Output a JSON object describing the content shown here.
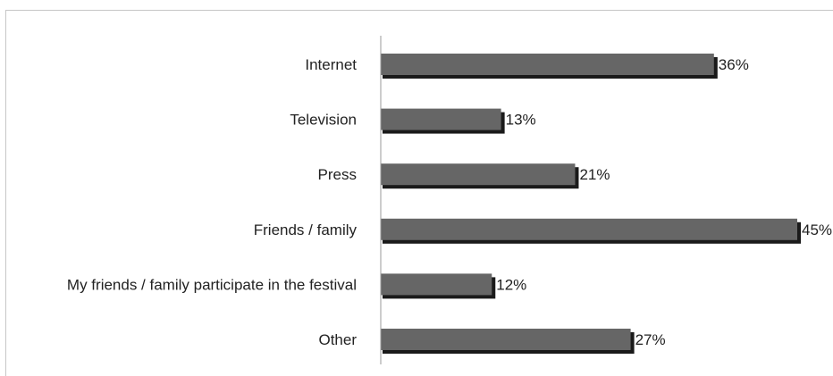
{
  "chart_data": {
    "type": "bar",
    "orientation": "horizontal",
    "categories": [
      "Internet",
      "Television",
      "Press",
      "Friends / family",
      "My friends / family participate in the festival",
      "Other"
    ],
    "values": [
      36,
      13,
      21,
      45,
      12,
      27
    ],
    "value_labels": [
      "36%",
      "13%",
      "21%",
      "45%",
      "12%",
      "27%"
    ],
    "unit": "%",
    "xlim": [
      0,
      45
    ],
    "grid": false,
    "legend": "none",
    "colors": {
      "bar": "#666666",
      "bar_shadow": "#1a1a1a",
      "axis": "#999999",
      "frame": "#c6c6c6"
    }
  }
}
